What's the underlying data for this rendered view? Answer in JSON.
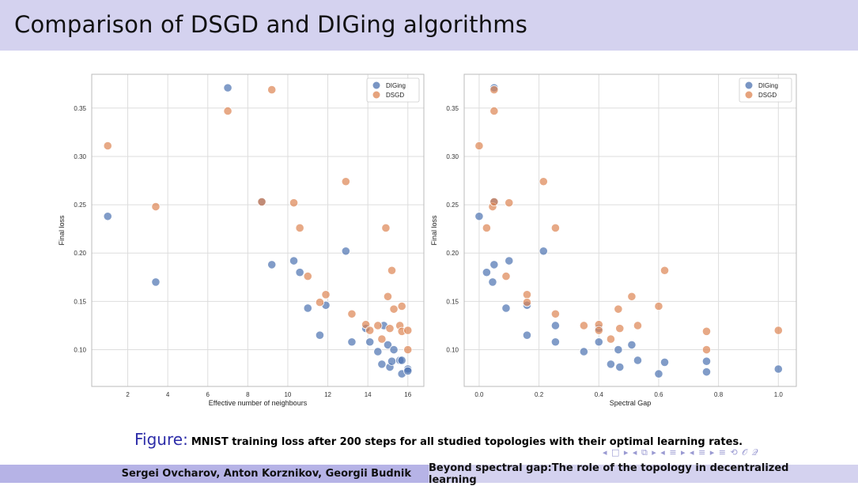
{
  "slide": {
    "title": "Comparison of DSGD and DIGing algorithms",
    "caption_label": "Figure:",
    "caption_text": "MNIST training loss after 200 steps for all studied topologies with their optimal learning rates.",
    "nav_symbols": "◂ □ ▸ ◂ ⧉ ▸ ◂ ≡ ▸ ◂ ≡ ▸   ≡   ⟲ 𝒪 𝒬",
    "footer_authors": "Sergei Ovcharov, Anton Korznikov, Georgii Budnik",
    "footer_title": "Beyond spectral gap:The role of the topology in decentralized learning"
  },
  "colors": {
    "title_bar": "#d4d2ef",
    "footer_left": "#b6b3e6",
    "footer_right": "#d4d2ef",
    "diging": "#4c72b0",
    "dsgd": "#dd8452",
    "caption_label": "#2c2ca8"
  },
  "chart_data": [
    {
      "type": "scatter",
      "xlabel": "Effective number of neighbours",
      "ylabel": "Final loss",
      "xlim": [
        0.2,
        16.8
      ],
      "ylim": [
        0.062,
        0.385
      ],
      "xticks": [
        2,
        4,
        6,
        8,
        10,
        12,
        14,
        16
      ],
      "xticklabels": [
        "2",
        "4",
        "6",
        "8",
        "10",
        "12",
        "14",
        "16"
      ],
      "yticks": [
        0.1,
        0.15,
        0.2,
        0.25,
        0.3,
        0.35
      ],
      "yticklabels": [
        "0.10",
        "0.15",
        "0.20",
        "0.25",
        "0.30",
        "0.35"
      ],
      "grid": true,
      "legend": "top-right",
      "series": [
        {
          "name": "DIGing",
          "color": "#4c72b0",
          "points": [
            [
              1.0,
              0.238
            ],
            [
              3.4,
              0.17
            ],
            [
              7.0,
              0.371
            ],
            [
              8.7,
              0.253
            ],
            [
              9.2,
              0.188
            ],
            [
              10.3,
              0.192
            ],
            [
              10.6,
              0.18
            ],
            [
              11.0,
              0.143
            ],
            [
              11.6,
              0.115
            ],
            [
              11.9,
              0.146
            ],
            [
              12.9,
              0.202
            ],
            [
              13.2,
              0.108
            ],
            [
              13.9,
              0.122
            ],
            [
              14.1,
              0.108
            ],
            [
              14.5,
              0.098
            ],
            [
              14.7,
              0.085
            ],
            [
              14.8,
              0.125
            ],
            [
              15.0,
              0.105
            ],
            [
              15.1,
              0.082
            ],
            [
              15.2,
              0.088
            ],
            [
              15.3,
              0.1
            ],
            [
              15.6,
              0.089
            ],
            [
              15.7,
              0.089
            ],
            [
              15.7,
              0.075
            ],
            [
              16.0,
              0.08
            ],
            [
              16.0,
              0.078
            ]
          ]
        },
        {
          "name": "DSGD",
          "color": "#dd8452",
          "points": [
            [
              1.0,
              0.311
            ],
            [
              3.4,
              0.248
            ],
            [
              7.0,
              0.347
            ],
            [
              8.7,
              0.253
            ],
            [
              9.2,
              0.369
            ],
            [
              10.3,
              0.252
            ],
            [
              10.6,
              0.226
            ],
            [
              11.0,
              0.176
            ],
            [
              11.6,
              0.149
            ],
            [
              11.9,
              0.157
            ],
            [
              12.9,
              0.274
            ],
            [
              13.2,
              0.137
            ],
            [
              13.9,
              0.126
            ],
            [
              14.1,
              0.12
            ],
            [
              14.5,
              0.125
            ],
            [
              14.7,
              0.111
            ],
            [
              14.9,
              0.226
            ],
            [
              15.0,
              0.155
            ],
            [
              15.1,
              0.122
            ],
            [
              15.2,
              0.182
            ],
            [
              15.3,
              0.142
            ],
            [
              15.6,
              0.125
            ],
            [
              15.7,
              0.145
            ],
            [
              15.7,
              0.119
            ],
            [
              16.0,
              0.12
            ],
            [
              16.0,
              0.1
            ]
          ]
        }
      ]
    },
    {
      "type": "scatter",
      "xlabel": "Spectral Gap",
      "ylabel": "Final loss",
      "xlim": [
        -0.05,
        1.06
      ],
      "ylim": [
        0.062,
        0.385
      ],
      "xticks": [
        0.0,
        0.2,
        0.4,
        0.6,
        0.8,
        1.0
      ],
      "xticklabels": [
        "0.0",
        "0.2",
        "0.4",
        "0.6",
        "0.8",
        "1.0"
      ],
      "yticks": [
        0.1,
        0.15,
        0.2,
        0.25,
        0.3,
        0.35
      ],
      "yticklabels": [
        "0.10",
        "0.15",
        "0.20",
        "0.25",
        "0.30",
        "0.35"
      ],
      "grid": true,
      "legend": "top-right",
      "series": [
        {
          "name": "DIGing",
          "color": "#4c72b0",
          "points": [
            [
              0.0,
              0.238
            ],
            [
              0.025,
              0.18
            ],
            [
              0.045,
              0.17
            ],
            [
              0.05,
              0.371
            ],
            [
              0.05,
              0.253
            ],
            [
              0.05,
              0.188
            ],
            [
              0.1,
              0.192
            ],
            [
              0.09,
              0.143
            ],
            [
              0.16,
              0.146
            ],
            [
              0.16,
              0.115
            ],
            [
              0.215,
              0.202
            ],
            [
              0.255,
              0.125
            ],
            [
              0.255,
              0.108
            ],
            [
              0.35,
              0.098
            ],
            [
              0.4,
              0.108
            ],
            [
              0.4,
              0.122
            ],
            [
              0.44,
              0.085
            ],
            [
              0.465,
              0.1
            ],
            [
              0.47,
              0.082
            ],
            [
              0.51,
              0.105
            ],
            [
              0.53,
              0.089
            ],
            [
              0.6,
              0.075
            ],
            [
              0.62,
              0.087
            ],
            [
              0.76,
              0.088
            ],
            [
              0.76,
              0.077
            ],
            [
              1.0,
              0.08
            ]
          ]
        },
        {
          "name": "DSGD",
          "color": "#dd8452",
          "points": [
            [
              0.0,
              0.311
            ],
            [
              0.025,
              0.226
            ],
            [
              0.045,
              0.248
            ],
            [
              0.05,
              0.369
            ],
            [
              0.05,
              0.347
            ],
            [
              0.05,
              0.253
            ],
            [
              0.09,
              0.176
            ],
            [
              0.1,
              0.252
            ],
            [
              0.16,
              0.157
            ],
            [
              0.16,
              0.149
            ],
            [
              0.215,
              0.274
            ],
            [
              0.255,
              0.226
            ],
            [
              0.255,
              0.137
            ],
            [
              0.35,
              0.125
            ],
            [
              0.4,
              0.126
            ],
            [
              0.4,
              0.12
            ],
            [
              0.44,
              0.111
            ],
            [
              0.465,
              0.142
            ],
            [
              0.47,
              0.122
            ],
            [
              0.51,
              0.155
            ],
            [
              0.53,
              0.125
            ],
            [
              0.6,
              0.145
            ],
            [
              0.62,
              0.182
            ],
            [
              0.76,
              0.119
            ],
            [
              0.76,
              0.1
            ],
            [
              1.0,
              0.12
            ]
          ]
        }
      ]
    }
  ]
}
